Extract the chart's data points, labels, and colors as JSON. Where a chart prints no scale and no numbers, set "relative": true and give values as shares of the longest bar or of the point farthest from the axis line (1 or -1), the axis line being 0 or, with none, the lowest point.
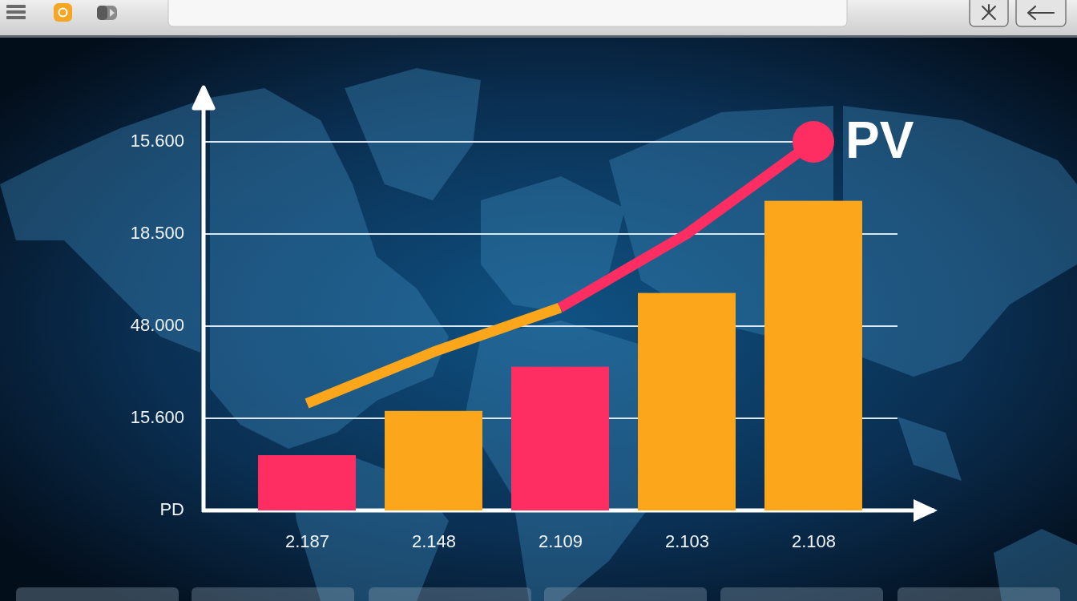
{
  "chart_data": {
    "type": "bar",
    "relative": true,
    "categories": [
      "2.187",
      "2.148",
      "2.109",
      "2.103",
      "2.108"
    ],
    "annotations": [
      "15.600",
      "18.500",
      "48.000",
      "15.600",
      "PD"
    ],
    "ref_lines": [
      {
        "axis": "y",
        "value": 0.25,
        "color": "#dbe8f2"
      },
      {
        "axis": "y",
        "value": 0.5,
        "color": "#dbe8f2"
      },
      {
        "axis": "y",
        "value": 0.75,
        "color": "#dbe8f2"
      },
      {
        "axis": "y",
        "value": 1.0,
        "color": "#dbe8f2"
      }
    ],
    "series": [
      {
        "colors": [
          "#fe2e62",
          "#fca61c",
          "#fe2e62",
          "#fca61c",
          "#fca61c"
        ],
        "values": [
          0.15,
          0.27,
          0.39,
          0.59,
          0.84
        ]
      },
      {
        "type": "line",
        "color": "#fca61c",
        "values": [
          0.29,
          0.43,
          0.55,
          null,
          null
        ],
        "marker": "none"
      },
      {
        "type": "line",
        "color": "#fe2e62",
        "values": [
          null,
          null,
          0.55,
          0.75,
          1.0
        ],
        "marker": "none"
      },
      {
        "type": "scatter",
        "name": "PV",
        "color": "#fe2e62",
        "values": [
          null,
          null,
          null,
          null,
          1.0
        ],
        "marker": "circle"
      }
    ]
  }
}
